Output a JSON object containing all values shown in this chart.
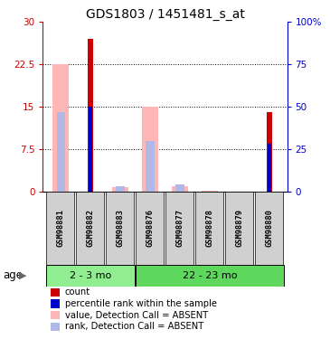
{
  "title": "GDS1803 / 1451481_s_at",
  "samples": [
    "GSM98881",
    "GSM98882",
    "GSM98883",
    "GSM98876",
    "GSM98877",
    "GSM98878",
    "GSM98879",
    "GSM98880"
  ],
  "group1_count": 3,
  "group2_count": 5,
  "group1_label": "2 - 3 mo",
  "group2_label": "22 - 23 mo",
  "group1_color": "#90ee90",
  "group2_color": "#5dd85d",
  "value_absent": [
    22.5,
    0.0,
    0.8,
    15.0,
    1.0,
    0.1,
    0.0,
    0.0
  ],
  "rank_absent_pct": [
    47.0,
    0.0,
    3.0,
    30.0,
    4.0,
    0.0,
    0.0,
    0.0
  ],
  "count_value": [
    0.0,
    27.0,
    0.0,
    0.0,
    0.0,
    0.0,
    0.0,
    14.0
  ],
  "rank_present_pct": [
    0.0,
    50.0,
    0.0,
    0.0,
    0.0,
    0.0,
    0.0,
    28.0
  ],
  "ylim_left": [
    0,
    30
  ],
  "ylim_right": [
    0,
    100
  ],
  "yticks_left": [
    0,
    7.5,
    15,
    22.5,
    30
  ],
  "ytick_labels_left": [
    "0",
    "7.5",
    "15",
    "22.5",
    "30"
  ],
  "yticks_right": [
    0,
    25,
    50,
    75,
    100
  ],
  "ytick_labels_right": [
    "0",
    "25",
    "50",
    "75",
    "100%"
  ],
  "absent_value_color": "#ffb6b6",
  "absent_rank_color": "#b0b8e8",
  "count_color": "#cc0000",
  "rank_color": "#0000cc",
  "bg_color": "#ffffff",
  "age_label": "age",
  "legend_items": [
    {
      "color": "#cc0000",
      "label": "count"
    },
    {
      "color": "#0000cc",
      "label": "percentile rank within the sample"
    },
    {
      "color": "#ffb6b6",
      "label": "value, Detection Call = ABSENT"
    },
    {
      "color": "#b0b8e8",
      "label": "rank, Detection Call = ABSENT"
    }
  ]
}
